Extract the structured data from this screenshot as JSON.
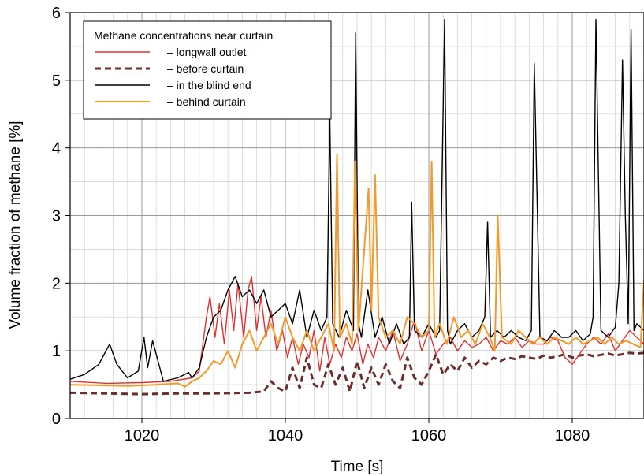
{
  "chart_data": {
    "type": "line",
    "title": "",
    "xlabel": "Time [s]",
    "ylabel": "Volume fraction of methane [%]",
    "xlim": [
      1010,
      1090
    ],
    "ylim": [
      0,
      6
    ],
    "x_ticks": [
      "1020",
      "1040",
      "1060",
      "1080"
    ],
    "y_ticks": [
      "0",
      "1",
      "2",
      "3",
      "4",
      "5",
      "6"
    ],
    "grid": true,
    "legend": {
      "title": "Methane concentrations near curtain",
      "placement": "top-left",
      "entries": [
        "– longwall outlet",
        "– before curtain",
        "– in the blind end",
        "– behind curtain"
      ]
    },
    "series": [
      {
        "name": "longwall outlet",
        "color": "#e03030",
        "style": "solid",
        "x": [
          1010,
          1015,
          1020,
          1024,
          1027,
          1028,
          1029,
          1029.5,
          1030.2,
          1030.8,
          1031.5,
          1032.2,
          1032.8,
          1033.4,
          1034.2,
          1034.8,
          1035.3,
          1036,
          1036.6,
          1037.3,
          1038,
          1038.8,
          1039.6,
          1040.3,
          1041,
          1041.8,
          1042.5,
          1043.3,
          1044,
          1044.8,
          1045.5,
          1046.2,
          1047,
          1047.8,
          1048.5,
          1049.3,
          1050,
          1050.8,
          1051.5,
          1052.3,
          1053,
          1054,
          1055,
          1056,
          1057,
          1058,
          1059,
          1060,
          1061,
          1062,
          1063,
          1064,
          1065,
          1066,
          1067,
          1068,
          1069,
          1070,
          1071,
          1072,
          1073,
          1074,
          1075,
          1076,
          1077,
          1078,
          1079,
          1080,
          1081,
          1082,
          1083,
          1084,
          1085,
          1086,
          1087,
          1088,
          1089,
          1090
        ],
        "values": [
          0.55,
          0.52,
          0.53,
          0.55,
          0.6,
          0.7,
          1.5,
          1.8,
          1.2,
          1.7,
          1.1,
          1.9,
          1.3,
          2.0,
          1.2,
          1.9,
          2.1,
          1.3,
          1.8,
          1.2,
          1.6,
          1.0,
          1.3,
          0.9,
          1.2,
          0.8,
          1.1,
          0.9,
          1.3,
          0.7,
          1.2,
          0.8,
          1.1,
          0.9,
          1.2,
          1.0,
          1.25,
          0.8,
          1.1,
          0.9,
          1.2,
          1.0,
          1.3,
          0.85,
          1.1,
          1.45,
          1.0,
          1.3,
          0.95,
          1.1,
          1.2,
          1.0,
          1.15,
          1.05,
          1.1,
          1.2,
          1.0,
          1.15,
          1.1,
          1.2,
          1.05,
          1.15,
          1.1,
          1.1,
          1.2,
          1.15,
          0.9,
          0.8,
          0.95,
          1.1,
          1.2,
          1.1,
          1.25,
          1.0,
          1.15,
          1.3,
          1.2,
          1.1
        ]
      },
      {
        "name": "before curtain",
        "color": "#6b2e2e",
        "style": "dashed",
        "x": [
          1010,
          1015,
          1020,
          1025,
          1030,
          1035,
          1037,
          1038,
          1039,
          1040,
          1041,
          1042,
          1043,
          1044,
          1045,
          1046,
          1047,
          1048,
          1049,
          1050,
          1051,
          1052,
          1053,
          1054,
          1055,
          1056,
          1057,
          1058,
          1059,
          1060,
          1061,
          1062,
          1063,
          1064,
          1065,
          1066,
          1067,
          1068,
          1069,
          1070,
          1071,
          1072,
          1073,
          1074,
          1075,
          1076,
          1077,
          1078,
          1079,
          1080,
          1081,
          1082,
          1083,
          1084,
          1085,
          1086,
          1087,
          1088,
          1089,
          1090
        ],
        "values": [
          0.38,
          0.37,
          0.36,
          0.37,
          0.37,
          0.38,
          0.4,
          0.55,
          0.45,
          0.4,
          0.75,
          0.45,
          0.9,
          0.5,
          0.45,
          0.8,
          0.5,
          0.75,
          0.4,
          0.85,
          0.45,
          0.75,
          0.5,
          0.8,
          0.55,
          0.45,
          0.9,
          0.6,
          0.5,
          0.7,
          0.95,
          0.65,
          0.8,
          0.7,
          0.9,
          0.75,
          0.85,
          0.8,
          0.9,
          0.85,
          0.9,
          0.88,
          0.92,
          0.9,
          0.88,
          0.93,
          0.9,
          0.92,
          0.95,
          0.9,
          0.93,
          0.95,
          0.92,
          0.94,
          0.96,
          0.93,
          0.95,
          0.97,
          0.96,
          0.97
        ]
      },
      {
        "name": "in the blind end",
        "color": "#000000",
        "style": "solid",
        "x": [
          1010,
          1012,
          1014,
          1015.5,
          1016.5,
          1018,
          1019.5,
          1020.3,
          1020.8,
          1021.5,
          1023,
          1025,
          1026.5,
          1027,
          1028,
          1029,
          1030,
          1031,
          1032,
          1033,
          1034,
          1035,
          1036,
          1037,
          1038,
          1039,
          1040,
          1041,
          1042,
          1043,
          1044,
          1045,
          1045.8,
          1046.2,
          1046.6,
          1047.5,
          1048.5,
          1049.5,
          1049.8,
          1050.2,
          1050.6,
          1051.5,
          1052.5,
          1053.5,
          1054.5,
          1055.5,
          1056.5,
          1057.3,
          1057.6,
          1058,
          1059,
          1060,
          1061,
          1061.5,
          1062.2,
          1062.6,
          1063,
          1064,
          1065,
          1066,
          1067,
          1067.8,
          1068.2,
          1068.6,
          1069.5,
          1070.5,
          1071.5,
          1072.5,
          1073.5,
          1074.3,
          1074.7,
          1075.5,
          1076.5,
          1077.5,
          1078.5,
          1079.5,
          1080.5,
          1081.5,
          1082.5,
          1082.9,
          1083.3,
          1084,
          1085,
          1086,
          1086.5,
          1087,
          1087.4,
          1087.8,
          1088.2,
          1088.6,
          1089,
          1090
        ],
        "values": [
          0.58,
          0.65,
          0.8,
          1.1,
          0.8,
          0.6,
          0.7,
          1.2,
          0.75,
          1.15,
          0.55,
          0.6,
          0.68,
          0.6,
          0.75,
          1.2,
          1.5,
          1.6,
          1.9,
          2.1,
          1.8,
          1.9,
          1.7,
          1.9,
          1.5,
          1.6,
          1.7,
          1.4,
          1.9,
          1.2,
          1.6,
          1.3,
          1.5,
          4.5,
          1.4,
          1.2,
          1.6,
          1.3,
          5.7,
          1.4,
          1.2,
          1.9,
          1.2,
          1.5,
          1.1,
          1.4,
          1.1,
          1.2,
          3.2,
          1.3,
          1.2,
          1.4,
          1.2,
          1.3,
          5.9,
          1.3,
          1.1,
          1.3,
          1.4,
          1.2,
          1.3,
          1.5,
          2.9,
          1.2,
          1.3,
          1.2,
          1.3,
          1.2,
          1.15,
          1.3,
          5.25,
          1.2,
          1.15,
          1.3,
          1.2,
          1.2,
          1.3,
          1.15,
          1.25,
          1.5,
          5.9,
          1.3,
          1.2,
          1.35,
          2.0,
          5.3,
          3.0,
          1.4,
          5.75,
          1.3,
          1.4,
          1.3
        ]
      },
      {
        "name": "behind curtain",
        "color": "#f39a2d",
        "style": "solid",
        "x": [
          1010,
          1014,
          1018,
          1022,
          1025,
          1026,
          1027,
          1028,
          1029,
          1030,
          1031,
          1032,
          1033,
          1034,
          1035,
          1036,
          1037,
          1038,
          1039,
          1040,
          1041,
          1042,
          1043,
          1044,
          1045,
          1046,
          1046.8,
          1047.2,
          1047.6,
          1048.5,
          1049.3,
          1049.7,
          1050.2,
          1051,
          1051.6,
          1052,
          1052.5,
          1053,
          1054,
          1055,
          1056,
          1057,
          1058,
          1059,
          1060,
          1060.4,
          1060.8,
          1061.5,
          1062.5,
          1063.5,
          1064.5,
          1065.5,
          1066.5,
          1067.5,
          1068.5,
          1069.2,
          1069.6,
          1070.2,
          1071.5,
          1072.5,
          1073.5,
          1074.5,
          1075.5,
          1076.5,
          1077.5,
          1078.5,
          1079.5,
          1080.5,
          1081.5,
          1082.5,
          1083.5,
          1084.5,
          1085.5,
          1086.5,
          1087.5,
          1088.5,
          1089.5,
          1090
        ],
        "values": [
          0.5,
          0.49,
          0.48,
          0.5,
          0.52,
          0.47,
          0.55,
          0.6,
          0.7,
          0.85,
          0.8,
          1.0,
          0.75,
          1.1,
          1.3,
          1.0,
          1.2,
          1.4,
          1.1,
          1.5,
          1.2,
          1.0,
          1.3,
          1.0,
          1.2,
          1.4,
          1.0,
          3.9,
          1.2,
          1.4,
          1.1,
          3.8,
          1.3,
          2.5,
          3.4,
          1.6,
          3.6,
          1.5,
          1.2,
          1.3,
          1.1,
          1.5,
          1.4,
          1.2,
          1.3,
          3.8,
          1.2,
          1.4,
          1.1,
          1.5,
          1.2,
          1.3,
          1.1,
          1.4,
          1.2,
          1.0,
          3.0,
          1.2,
          1.1,
          1.3,
          1.2,
          1.1,
          1.2,
          1.1,
          1.2,
          1.15,
          1.1,
          1.2,
          1.1,
          1.15,
          1.2,
          1.1,
          1.2,
          1.1,
          1.15,
          1.1,
          1.05,
          2.05
        ]
      }
    ]
  }
}
